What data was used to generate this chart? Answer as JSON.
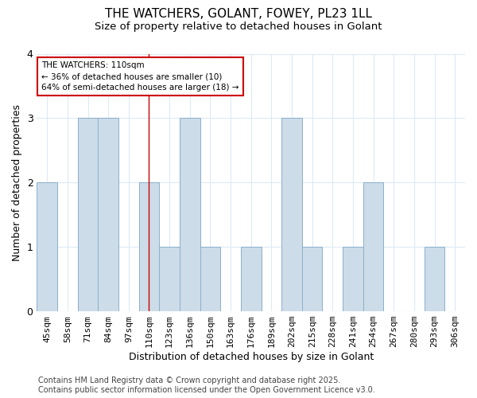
{
  "title": "THE WATCHERS, GOLANT, FOWEY, PL23 1LL",
  "subtitle": "Size of property relative to detached houses in Golant",
  "xlabel": "Distribution of detached houses by size in Golant",
  "ylabel": "Number of detached properties",
  "categories": [
    "45sqm",
    "58sqm",
    "71sqm",
    "84sqm",
    "97sqm",
    "110sqm",
    "123sqm",
    "136sqm",
    "150sqm",
    "163sqm",
    "176sqm",
    "189sqm",
    "202sqm",
    "215sqm",
    "228sqm",
    "241sqm",
    "254sqm",
    "267sqm",
    "280sqm",
    "293sqm",
    "306sqm"
  ],
  "values": [
    2,
    0,
    3,
    3,
    0,
    2,
    1,
    3,
    1,
    0,
    1,
    0,
    3,
    1,
    0,
    1,
    2,
    0,
    0,
    1,
    0
  ],
  "highlight_index": 5,
  "bar_color": "#ccdce8",
  "bar_edge_color": "#8ab0cc",
  "highlight_line_color": "#cc0000",
  "annotation_text": "THE WATCHERS: 110sqm\n← 36% of detached houses are smaller (10)\n64% of semi-detached houses are larger (18) →",
  "annotation_box_color": "white",
  "annotation_box_edge": "#cc0000",
  "ylim": [
    0,
    4
  ],
  "yticks": [
    0,
    1,
    2,
    3,
    4
  ],
  "footer": "Contains HM Land Registry data © Crown copyright and database right 2025.\nContains public sector information licensed under the Open Government Licence v3.0.",
  "bg_color": "#ffffff",
  "plot_bg_color": "#ffffff",
  "grid_color": "#ddeaf5",
  "title_fontsize": 11,
  "subtitle_fontsize": 9.5,
  "axis_label_fontsize": 9,
  "tick_fontsize": 8,
  "footer_fontsize": 7
}
